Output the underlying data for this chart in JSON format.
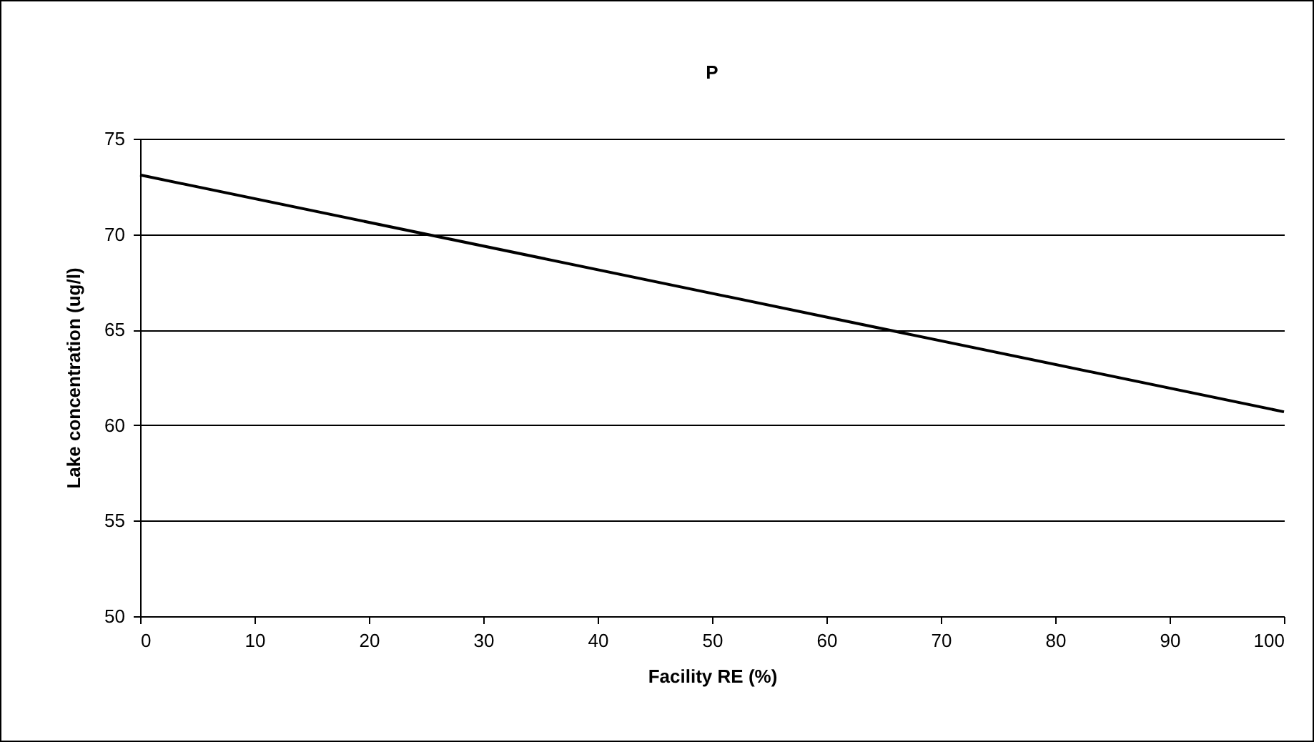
{
  "chart_data": {
    "type": "line",
    "title": "P",
    "xlabel": "Facility RE (%)",
    "ylabel": "Lake concentration (ug/l)",
    "x": [
      0,
      100
    ],
    "series": [
      {
        "color": "#000000",
        "values": [
          73.1,
          60.7
        ]
      }
    ],
    "xlim": [
      0,
      100
    ],
    "xticks": [
      0,
      10,
      20,
      30,
      40,
      50,
      60,
      70,
      80,
      90,
      100
    ],
    "ylim": [
      50,
      75
    ],
    "yticks": [
      50,
      55,
      60,
      65,
      70,
      75
    ],
    "grid": "y",
    "legend": false,
    "marker": "none",
    "line_style": "solid"
  }
}
